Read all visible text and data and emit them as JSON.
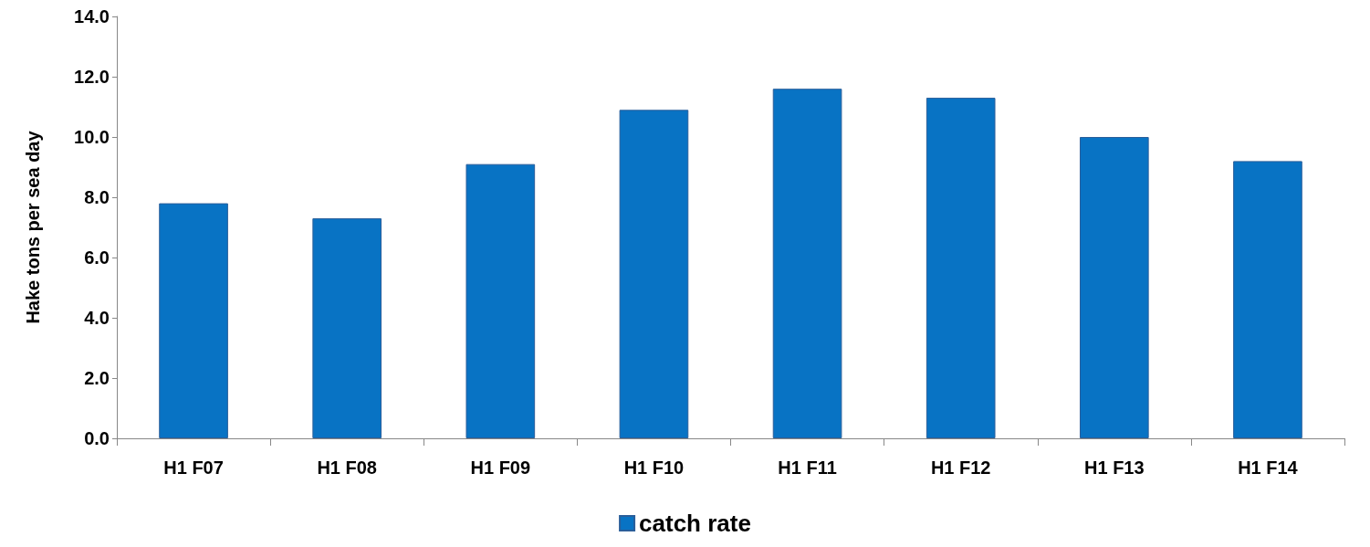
{
  "chart_data": {
    "type": "bar",
    "ylabel": "Hake tons per sea day",
    "categories": [
      "H1 F07",
      "H1 F08",
      "H1 F09",
      "H1 F10",
      "H1 F11",
      "H1 F12",
      "H1 F13",
      "H1 F14"
    ],
    "series": [
      {
        "name": "catch rate",
        "color": "#0873c4",
        "values": [
          7.8,
          7.3,
          9.1,
          10.9,
          11.6,
          11.3,
          10.0,
          9.2
        ]
      }
    ],
    "ylim": [
      0,
      14
    ],
    "yticks": [
      {
        "value": 0,
        "label": "0.0"
      },
      {
        "value": 2,
        "label": "2.0"
      },
      {
        "value": 4,
        "label": "4.0"
      },
      {
        "value": 6,
        "label": "6.0"
      },
      {
        "value": 8,
        "label": "8.0"
      },
      {
        "value": 10,
        "label": "10.0"
      },
      {
        "value": 12,
        "label": "12.0"
      },
      {
        "value": 14,
        "label": "14.0"
      }
    ],
    "grid": false,
    "legend": "bottom"
  }
}
